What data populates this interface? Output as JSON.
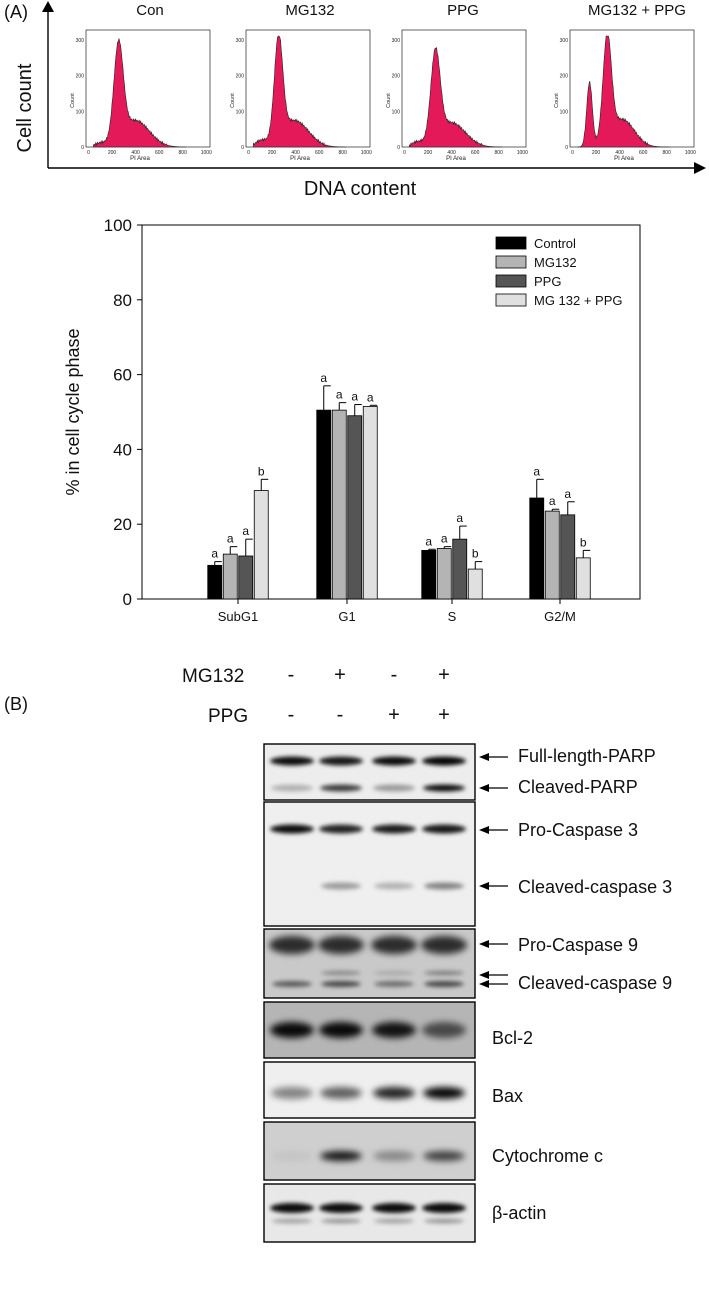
{
  "panel_a": {
    "label": "(A)",
    "y_axis_label": "Cell count",
    "x_axis_label": "DNA content",
    "histograms": [
      {
        "title": "Con",
        "x_label": "PI Area",
        "y_label": "Count"
      },
      {
        "title": "MG132",
        "x_label": "PI Area",
        "y_label": "Count"
      },
      {
        "title": "PPG",
        "x_label": "PI Area",
        "y_label": "Count"
      },
      {
        "title": "MG132 + PPG",
        "x_label": "PI Area",
        "y_label": "Count"
      }
    ],
    "histogram_x_ticks": [
      "0",
      "200",
      "400",
      "600",
      "800",
      "1000"
    ],
    "histogram_y_ticks": [
      "0",
      "100",
      "200",
      "300"
    ]
  },
  "chart_data": {
    "type": "bar",
    "ylabel": "% in cell cycle phase",
    "xlabel": "",
    "ylim": [
      0,
      100
    ],
    "yticks": [
      0,
      20,
      40,
      60,
      80,
      100
    ],
    "categories": [
      "SubG1",
      "G1",
      "S",
      "G2/M"
    ],
    "legend_position": "top-right",
    "series": [
      {
        "name": "Control",
        "color": "#000000",
        "values": [
          9,
          50.5,
          13,
          27
        ],
        "errors": [
          1,
          6.5,
          0.3,
          5
        ],
        "letters": [
          "a",
          "a",
          "a",
          "a"
        ]
      },
      {
        "name": "MG132",
        "color": "#b4b4b4",
        "values": [
          12,
          50.5,
          13.5,
          23.5
        ],
        "errors": [
          2,
          2,
          0.5,
          0.5
        ],
        "letters": [
          "a",
          "a",
          "a",
          "a"
        ]
      },
      {
        "name": "PPG",
        "color": "#555555",
        "values": [
          11.5,
          49,
          16,
          22.5
        ],
        "errors": [
          4.5,
          3,
          3.5,
          3.5
        ],
        "letters": [
          "a",
          "a",
          "a",
          "a"
        ]
      },
      {
        "name": "MG 132 + PPG",
        "color": "#e0e0e0",
        "values": [
          29,
          51.5,
          8,
          11
        ],
        "errors": [
          3,
          0.3,
          2,
          2
        ],
        "letters": [
          "b",
          "a",
          "b",
          "b"
        ]
      }
    ]
  },
  "panel_b": {
    "label": "(B)",
    "treatments": [
      {
        "name": "MG132",
        "signs": [
          "-",
          "+",
          "-",
          "+"
        ]
      },
      {
        "name": "PPG",
        "signs": [
          "-",
          "-",
          "+",
          "+"
        ]
      }
    ],
    "band_labels": {
      "full_parp": "Full-length-PARP",
      "cleaved_parp": "Cleaved-PARP",
      "pro_casp3": "Pro-Caspase 3",
      "cleaved_casp3": "Cleaved-caspase 3",
      "pro_casp9": "Pro-Caspase 9",
      "cleaved_casp9": "Cleaved-caspase 9",
      "bcl2": "Bcl-2",
      "bax": "Bax",
      "cytc": "Cytochrome c",
      "actin": "β-actin"
    }
  }
}
